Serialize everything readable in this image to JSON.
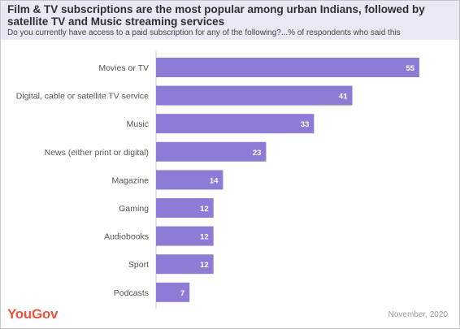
{
  "header": {
    "title": "Film & TV subscriptions  are the most popular among urban Indians, followed by satellite TV and Music streaming services",
    "subtitle": "Do you currently have access to a paid subscription for any of the following?...% of respondents who said this"
  },
  "footer": {
    "brand": "YouGov",
    "date": "November, 2020"
  },
  "colors": {
    "bar": "#8e7bd6",
    "bar_label": "#ffffff",
    "category_label": "#555555",
    "axis": "#cccccc",
    "brand": "#e8553f"
  },
  "chart_data": {
    "type": "bar",
    "orientation": "horizontal",
    "categories": [
      "Movies or TV",
      "Digital, cable or satellite TV service",
      "Music",
      "News (either print or digital)",
      "Magazine",
      "Gaming",
      "Audiobooks",
      "Sport",
      "Podcasts"
    ],
    "values": [
      55,
      41,
      33,
      23,
      14,
      12,
      12,
      12,
      7
    ],
    "xlim": [
      0,
      60
    ],
    "grid": false,
    "legend": "none"
  }
}
